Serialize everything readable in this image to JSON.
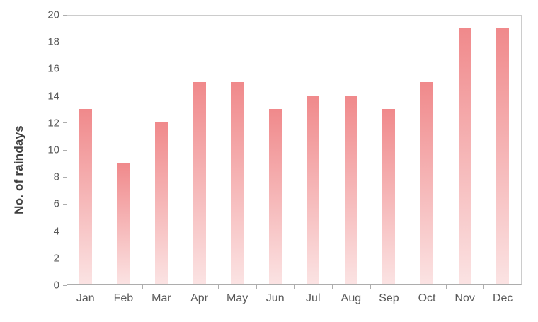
{
  "chart_data": {
    "type": "bar",
    "title": "",
    "categories": [
      "Jan",
      "Feb",
      "Mar",
      "Apr",
      "May",
      "Jun",
      "Jul",
      "Aug",
      "Sep",
      "Oct",
      "Nov",
      "Dec"
    ],
    "values": [
      13,
      9,
      12,
      15,
      15,
      13,
      14,
      14,
      13,
      15,
      19,
      19
    ],
    "xlabel": "",
    "ylabel": "No. of raindays",
    "ylim": [
      0,
      20
    ],
    "yticks": [
      0,
      2,
      4,
      6,
      8,
      10,
      12,
      14,
      16,
      18,
      20
    ],
    "grid": false,
    "legend": false,
    "colors": {
      "bar_gradient_top": "#f0898b",
      "bar_gradient_bottom": "#fbe3e3",
      "axis_line": "#adadad",
      "plot_border": "#cccccc",
      "tick_label": "#595959",
      "axis_title": "#404040",
      "background": "#ffffff"
    }
  }
}
